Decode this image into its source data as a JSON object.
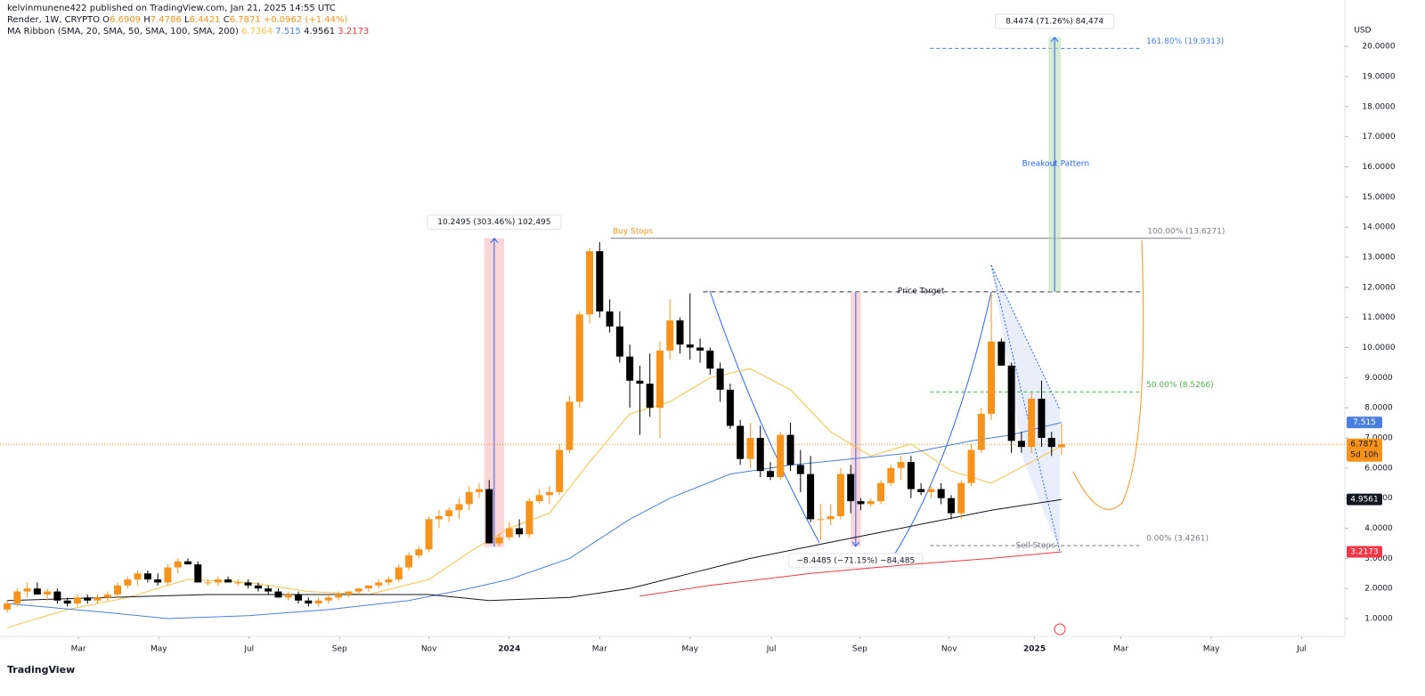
{
  "header": {
    "publisher": "kelvinmunene422 published on TradingView.com, Jan 21, 2025 14:55 UTC",
    "footer": "TradingView"
  },
  "chart_data": {
    "type": "candlestick",
    "symbol": "Render, 1W, CRYPTO",
    "ohlc_prefixes": [
      "O",
      "H",
      "L",
      "C"
    ],
    "change": "+0.0962 (+1.44%)",
    "indicator": "MA Ribbon (SMA, 20, SMA, 50, SMA, 100, SMA, 200)",
    "currency": "USD",
    "countdown": "5d 10h",
    "up_color": "#f7931a",
    "down_color": "#000000",
    "candles": [
      [
        1.3,
        1.6,
        1.2,
        1.5
      ],
      [
        1.5,
        2.0,
        1.4,
        1.9
      ],
      [
        1.9,
        2.2,
        1.7,
        2.0
      ],
      [
        2.0,
        2.2,
        1.8,
        1.8
      ],
      [
        1.8,
        2.0,
        1.6,
        1.9
      ],
      [
        1.9,
        2.0,
        1.5,
        1.6
      ],
      [
        1.6,
        1.7,
        1.4,
        1.5
      ],
      [
        1.5,
        1.8,
        1.4,
        1.7
      ],
      [
        1.7,
        1.8,
        1.5,
        1.6
      ],
      [
        1.6,
        1.8,
        1.5,
        1.7
      ],
      [
        1.7,
        1.9,
        1.6,
        1.8
      ],
      [
        1.8,
        2.2,
        1.7,
        2.1
      ],
      [
        2.1,
        2.4,
        2.0,
        2.3
      ],
      [
        2.3,
        2.6,
        2.1,
        2.5
      ],
      [
        2.5,
        2.6,
        2.2,
        2.3
      ],
      [
        2.3,
        2.5,
        2.1,
        2.2
      ],
      [
        2.2,
        2.8,
        2.1,
        2.7
      ],
      [
        2.7,
        3.0,
        2.5,
        2.9
      ],
      [
        2.9,
        3.0,
        2.8,
        2.8
      ],
      [
        2.8,
        2.9,
        2.2,
        2.2
      ],
      [
        2.2,
        2.3,
        2.1,
        2.2
      ],
      [
        2.2,
        2.4,
        2.1,
        2.3
      ],
      [
        2.3,
        2.4,
        2.2,
        2.2
      ],
      [
        2.2,
        2.3,
        2.1,
        2.2
      ],
      [
        2.2,
        2.3,
        2.0,
        2.1
      ],
      [
        2.1,
        2.2,
        1.9,
        2.0
      ],
      [
        2.0,
        2.1,
        1.8,
        1.9
      ],
      [
        1.9,
        2.0,
        1.7,
        1.7
      ],
      [
        1.7,
        1.9,
        1.6,
        1.8
      ],
      [
        1.8,
        1.9,
        1.5,
        1.6
      ],
      [
        1.6,
        1.7,
        1.4,
        1.5
      ],
      [
        1.5,
        1.7,
        1.4,
        1.6
      ],
      [
        1.6,
        1.8,
        1.5,
        1.7
      ],
      [
        1.7,
        1.9,
        1.6,
        1.8
      ],
      [
        1.8,
        1.9,
        1.7,
        1.9
      ],
      [
        1.9,
        2.0,
        1.8,
        2.0
      ],
      [
        2.0,
        2.1,
        1.9,
        2.1
      ],
      [
        2.1,
        2.3,
        2.0,
        2.2
      ],
      [
        2.2,
        2.4,
        2.1,
        2.3
      ],
      [
        2.3,
        2.8,
        2.2,
        2.7
      ],
      [
        2.7,
        3.2,
        2.6,
        3.1
      ],
      [
        3.1,
        3.4,
        3.0,
        3.3
      ],
      [
        3.3,
        4.4,
        3.2,
        4.3
      ],
      [
        4.3,
        4.6,
        4.0,
        4.4
      ],
      [
        4.4,
        4.7,
        4.2,
        4.6
      ],
      [
        4.6,
        5.0,
        4.3,
        4.8
      ],
      [
        4.8,
        5.4,
        4.6,
        5.2
      ],
      [
        5.2,
        5.5,
        5.0,
        5.3
      ],
      [
        5.3,
        5.6,
        3.5,
        3.5
      ],
      [
        3.5,
        3.8,
        3.4,
        3.7
      ],
      [
        3.7,
        4.2,
        3.6,
        4.0
      ],
      [
        4.0,
        4.3,
        3.7,
        3.8
      ],
      [
        3.8,
        5.0,
        3.7,
        4.9
      ],
      [
        4.9,
        5.3,
        4.8,
        5.1
      ],
      [
        5.1,
        5.4,
        4.8,
        5.2
      ],
      [
        5.2,
        6.8,
        5.1,
        6.6
      ],
      [
        6.6,
        8.4,
        6.5,
        8.2
      ],
      [
        8.2,
        11.2,
        8.0,
        11.1
      ],
      [
        11.1,
        13.3,
        10.8,
        13.2
      ],
      [
        13.2,
        13.5,
        11.0,
        11.2
      ],
      [
        11.2,
        11.6,
        10.5,
        10.7
      ],
      [
        10.7,
        11.2,
        9.5,
        9.7
      ],
      [
        9.7,
        10.1,
        8.0,
        8.9
      ],
      [
        8.9,
        9.4,
        7.1,
        8.8
      ],
      [
        8.8,
        9.8,
        7.7,
        8.0
      ],
      [
        8.0,
        10.2,
        7.0,
        9.9
      ],
      [
        9.9,
        11.6,
        9.6,
        10.9
      ],
      [
        10.9,
        11.0,
        9.8,
        10.1
      ],
      [
        10.1,
        11.8,
        9.6,
        10.0
      ],
      [
        10.0,
        10.3,
        9.5,
        9.9
      ],
      [
        9.9,
        10.0,
        9.1,
        9.3
      ],
      [
        9.3,
        9.5,
        8.2,
        8.6
      ],
      [
        8.6,
        8.8,
        7.3,
        7.4
      ],
      [
        7.4,
        7.6,
        6.1,
        6.3
      ],
      [
        6.3,
        7.5,
        6.0,
        7.0
      ],
      [
        7.0,
        7.4,
        5.7,
        5.9
      ],
      [
        5.9,
        6.2,
        5.6,
        5.7
      ],
      [
        5.7,
        7.2,
        5.6,
        7.1
      ],
      [
        7.1,
        7.5,
        5.9,
        6.1
      ],
      [
        6.1,
        6.6,
        5.2,
        5.8
      ],
      [
        5.8,
        6.4,
        4.2,
        4.3
      ],
      [
        4.3,
        4.8,
        3.6,
        4.3
      ],
      [
        4.3,
        4.8,
        4.1,
        4.4
      ],
      [
        4.4,
        6.0,
        4.3,
        5.8
      ],
      [
        5.8,
        6.1,
        4.5,
        4.9
      ],
      [
        4.9,
        5.0,
        4.6,
        4.8
      ],
      [
        4.8,
        5.0,
        4.7,
        4.9
      ],
      [
        4.9,
        5.6,
        4.8,
        5.5
      ],
      [
        5.5,
        6.1,
        5.4,
        6.0
      ],
      [
        6.0,
        6.4,
        5.6,
        6.2
      ],
      [
        6.2,
        6.4,
        5.0,
        5.3
      ],
      [
        5.3,
        5.5,
        5.1,
        5.2
      ],
      [
        5.2,
        5.4,
        5.0,
        5.3
      ],
      [
        5.3,
        5.5,
        4.8,
        5.0
      ],
      [
        5.0,
        5.1,
        4.3,
        4.5
      ],
      [
        4.5,
        5.6,
        4.3,
        5.5
      ],
      [
        5.5,
        6.8,
        5.4,
        6.6
      ],
      [
        6.6,
        8.0,
        6.5,
        7.8
      ],
      [
        7.8,
        11.8,
        7.6,
        10.2
      ],
      [
        10.2,
        10.3,
        9.4,
        9.4
      ],
      [
        9.4,
        9.5,
        6.5,
        6.9
      ],
      [
        6.9,
        7.2,
        6.5,
        6.7
      ],
      [
        6.7,
        8.5,
        6.5,
        8.3
      ],
      [
        8.3,
        8.9,
        6.7,
        7.0
      ],
      [
        7.0,
        7.2,
        6.4,
        6.7
      ],
      [
        6.6909,
        7.4786,
        6.4421,
        6.7871
      ]
    ],
    "series": [
      {
        "color": "#f5c242",
        "x": [
          0,
          6,
          12,
          18,
          24,
          30,
          36,
          42,
          46,
          50,
          54,
          58,
          62,
          66,
          70,
          74,
          78,
          82,
          86,
          90,
          94,
          98,
          102,
          105
        ],
        "values": [
          0.7,
          1.3,
          1.7,
          2.3,
          2.2,
          1.9,
          1.8,
          2.3,
          3.2,
          4.0,
          4.5,
          6.2,
          7.8,
          8.2,
          9.0,
          9.3,
          8.6,
          7.2,
          6.4,
          6.8,
          5.9,
          5.5,
          6.2,
          6.7364
        ]
      },
      {
        "color": "#4a7fe0",
        "x": [
          0,
          10,
          16,
          24,
          32,
          40,
          46,
          50,
          56,
          62,
          66,
          72,
          78,
          84,
          90,
          96,
          100,
          105
        ],
        "values": [
          1.5,
          1.2,
          1.0,
          1.1,
          1.3,
          1.6,
          2.0,
          2.3,
          3.0,
          4.3,
          5.0,
          5.8,
          6.1,
          6.3,
          6.5,
          6.9,
          7.1,
          7.515
        ]
      },
      {
        "color": "#131722",
        "x": [
          0,
          20,
          30,
          42,
          48,
          56,
          62,
          68,
          74,
          80,
          86,
          92,
          98,
          105
        ],
        "values": [
          1.6,
          1.8,
          1.8,
          1.8,
          1.6,
          1.7,
          2.0,
          2.5,
          3.0,
          3.4,
          3.8,
          4.2,
          4.6,
          4.9561
        ]
      },
      {
        "color": "#f23645",
        "x": [
          63,
          70,
          80,
          90,
          98,
          105
        ],
        "values": [
          1.75,
          2.1,
          2.5,
          2.8,
          3.0,
          3.2173
        ]
      }
    ],
    "xlim": [
      -0.71,
      133.2
    ],
    "xticks": [
      {
        "value": 7.1,
        "label": "Mar"
      },
      {
        "value": 15.1,
        "label": "May"
      },
      {
        "value": 24.1,
        "label": "Jul"
      },
      {
        "value": 33.1,
        "label": "Sep"
      },
      {
        "value": 42.0,
        "label": "Nov"
      },
      {
        "value": 50.0,
        "label": "2024"
      },
      {
        "value": 59.0,
        "label": "Mar"
      },
      {
        "value": 68.0,
        "label": "May"
      },
      {
        "value": 76.1,
        "label": "Jul"
      },
      {
        "value": 84.9,
        "label": "Sep"
      },
      {
        "value": 93.8,
        "label": "Nov"
      },
      {
        "value": 102.3,
        "label": "2025"
      },
      {
        "value": 110.9,
        "label": "Mar"
      },
      {
        "value": 119.9,
        "label": "May"
      },
      {
        "value": 128.9,
        "label": "Jul"
      }
    ],
    "ylim": [
      0.41,
      21.54
    ],
    "yticks": [
      {
        "value": 1,
        "label": "1.0000"
      },
      {
        "value": 2,
        "label": "2.0000"
      },
      {
        "value": 3,
        "label": "3.0000"
      },
      {
        "value": 4,
        "label": "4.0000"
      },
      {
        "value": 5,
        "label": "5.0000"
      },
      {
        "value": 6,
        "label": "6.0000"
      },
      {
        "value": 7,
        "label": "7.0000"
      },
      {
        "value": 8,
        "label": "8.0000"
      },
      {
        "value": 9,
        "label": "9.0000"
      },
      {
        "value": 10,
        "label": "10.0000"
      },
      {
        "value": 11,
        "label": "11.0000"
      },
      {
        "value": 12,
        "label": "12.0000"
      },
      {
        "value": 13,
        "label": "13.0000"
      },
      {
        "value": 14,
        "label": "14.0000"
      },
      {
        "value": 15,
        "label": "15.0000"
      },
      {
        "value": 16,
        "label": "16.0000"
      },
      {
        "value": 17,
        "label": "17.0000"
      },
      {
        "value": 18,
        "label": "18.0000"
      },
      {
        "value": 19,
        "label": "19.0000"
      },
      {
        "value": 20,
        "label": "20.0000"
      }
    ],
    "fib_levels": [
      {
        "value": 19.9313,
        "label": "161.80% (19.9313)",
        "color": "#4a7fe0",
        "x": [
          91.9,
          112.9
        ],
        "dash": true
      },
      {
        "value": 13.6271,
        "label": "100.00% (13.6271)",
        "color": "#787b86",
        "x": [
          60.1,
          117.9
        ],
        "dash": false
      },
      {
        "value": 8.5266,
        "label": "50.00% (8.5266)",
        "color": "#4caf50",
        "x": [
          91.9,
          112.9
        ],
        "dash": true
      },
      {
        "value": 3.4261,
        "label": "0.00% (3.4261)",
        "color": "#787b86",
        "x": [
          91.9,
          112.9
        ],
        "dash": true
      }
    ],
    "lines": [
      {
        "y": 11.85,
        "x": [
          69.3,
          112.8
        ],
        "color": "#2a2e39"
      }
    ],
    "notes": [
      {
        "text": "Buy Stops",
        "x": 60.3,
        "y": 13.85,
        "color": "#f7931a"
      },
      {
        "text": "Price Target",
        "x": 91.0,
        "y": 11.87,
        "color": "#131722"
      },
      {
        "text": "Sell Stops",
        "x": 102.4,
        "y": 3.42,
        "color": "#787b86"
      },
      {
        "text": "Breakout Pattern",
        "x": 104.4,
        "y": 16.1,
        "color": "#2962ff"
      }
    ],
    "measures": [
      {
        "label": "10.2495 (303.46%) 102,495",
        "x": [
          47.5,
          49.5
        ],
        "y": [
          3.38,
          13.63
        ],
        "color": "#f8bbc0",
        "up": true
      },
      {
        "label": "−8.4485 (−71.15%) −84,485",
        "x": [
          84.0,
          85.0
        ],
        "y": [
          3.4,
          11.85
        ],
        "color": "#f8bbc0",
        "up": false
      },
      {
        "label": "8.4474 (71.26%) 84,474",
        "x": [
          103.7,
          104.9
        ],
        "y": [
          11.85,
          20.3
        ],
        "color": "#b9e0b4",
        "up": true
      }
    ]
  }
}
